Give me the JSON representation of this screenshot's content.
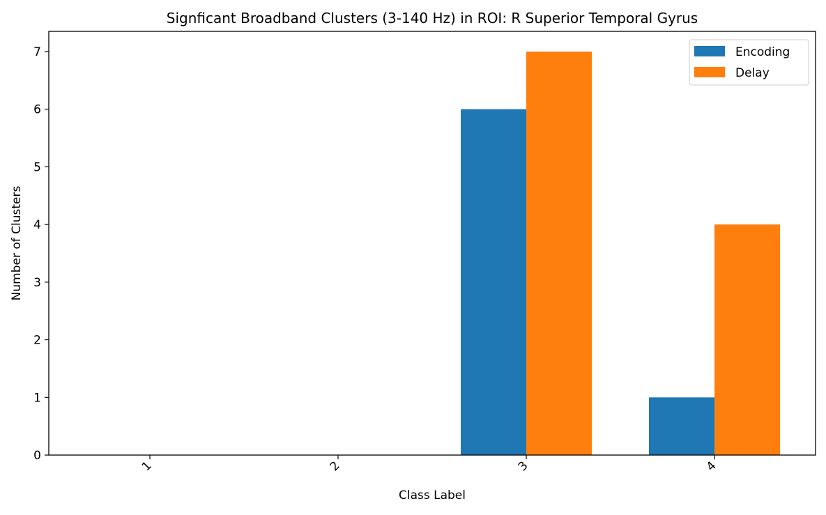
{
  "chart_data": {
    "type": "bar",
    "title": "Signficant Broadband Clusters (3-140 Hz) in ROI: R Superior Temporal Gyrus",
    "xlabel": "Class Label",
    "ylabel": "Number of Clusters",
    "categories": [
      "1",
      "2",
      "3",
      "4"
    ],
    "series": [
      {
        "name": "Encoding",
        "values": [
          0,
          0,
          6,
          1
        ],
        "color": "#1f77b4"
      },
      {
        "name": "Delay",
        "values": [
          0,
          0,
          7,
          4
        ],
        "color": "#ff7f0e"
      }
    ],
    "yticks": [
      "0",
      "1",
      "2",
      "3",
      "4",
      "5",
      "6",
      "7"
    ],
    "ylim": [
      0,
      7.35
    ],
    "grid": false,
    "legend_position": "top-right",
    "xtick_rotation": "45 degrees"
  }
}
